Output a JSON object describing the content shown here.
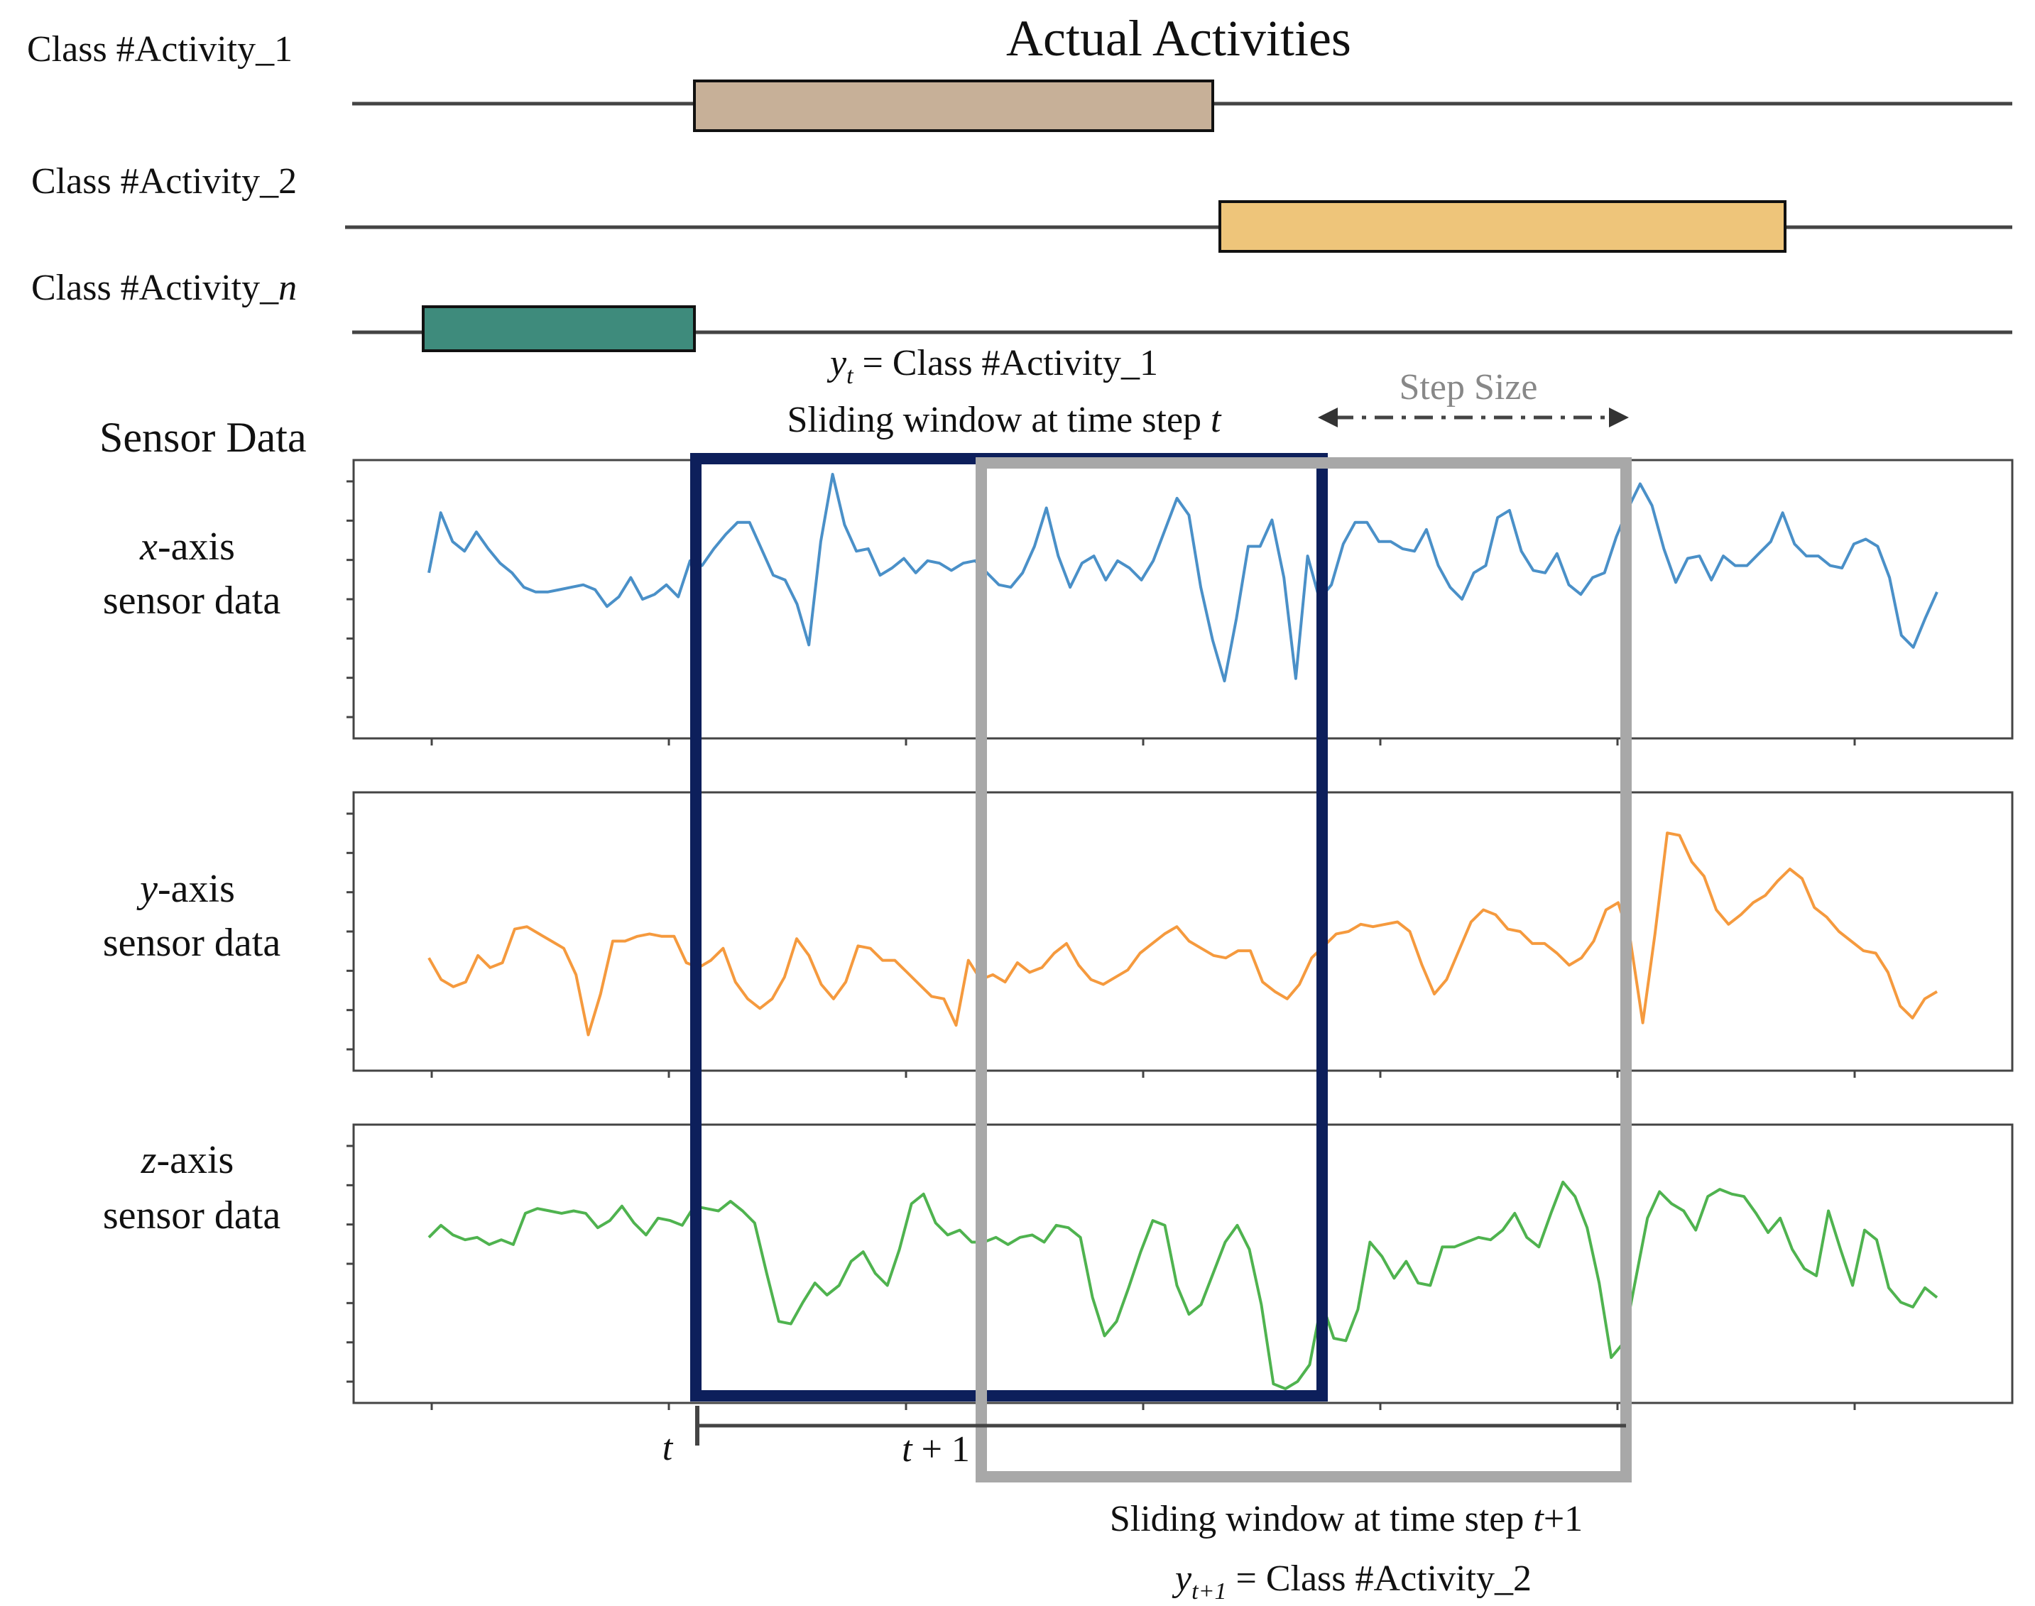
{
  "title": "Actual Activities",
  "activities": [
    {
      "label": "Class #Activity_1",
      "color": "#c7b098"
    },
    {
      "label": "Class #Activity_2",
      "color": "#eec57a"
    },
    {
      "label_prefix": "Class #Activity_",
      "label_var": "n",
      "color": "#3e8b7c"
    }
  ],
  "sensor_title": "Sensor Data",
  "window_t": {
    "label_y_var": "y",
    "label_y_sub": "t",
    "label_y_rest": " = Class #Activity_1",
    "label_caption": "Sliding window at time step ",
    "label_caption_var": "t",
    "color": "#0d1f5b"
  },
  "window_t1": {
    "label_caption": "Sliding window at time step ",
    "label_caption_var": "t",
    "label_caption_rest": "+1",
    "label_y_var": "y",
    "label_y_sub": "t+1",
    "label_y_rest": " = Class #Activity_2",
    "color": "#a8a8a8"
  },
  "step_size": {
    "label": "Step Size",
    "color": "#888888"
  },
  "time_axis": {
    "t_label": "t",
    "t1_label_var": "t",
    "t1_label_rest": " + 1"
  },
  "axes_labels": [
    {
      "var": "x",
      "line1_rest": "-axis",
      "line2": "sensor data"
    },
    {
      "var": "y",
      "line1_rest": "-axis",
      "line2": "sensor data"
    },
    {
      "var": "z",
      "line1_rest": "-axis",
      "line2": "sensor data"
    }
  ],
  "chart_data": {
    "type": "line",
    "x_range": [
      0,
      127
    ],
    "series": [
      {
        "name": "x-axis sensor data",
        "color": "#4a90c8",
        "values": [
          6.5,
          9.0,
          7.8,
          7.4,
          8.2,
          7.5,
          6.9,
          6.5,
          5.9,
          5.7,
          5.7,
          5.8,
          5.9,
          6.0,
          5.8,
          5.1,
          5.5,
          6.3,
          5.4,
          5.6,
          6.0,
          5.5,
          7.0,
          6.8,
          7.5,
          8.1,
          8.6,
          8.6,
          7.5,
          6.4,
          6.2,
          5.2,
          3.5,
          7.8,
          10.6,
          8.5,
          7.4,
          7.5,
          6.4,
          6.7,
          7.1,
          6.5,
          7.0,
          6.9,
          6.6,
          6.9,
          7.0,
          6.5,
          6.0,
          5.9,
          6.5,
          7.6,
          9.2,
          7.2,
          5.9,
          6.9,
          7.2,
          6.2,
          7.0,
          6.7,
          6.2,
          7.0,
          8.3,
          9.6,
          8.9,
          5.9,
          3.7,
          2.0,
          4.6,
          7.6,
          7.6,
          8.7,
          6.3,
          2.1,
          7.2,
          5.4,
          6.0,
          7.7,
          8.6,
          8.6,
          7.8,
          7.8,
          7.5,
          7.4,
          8.3,
          6.8,
          5.9,
          5.4,
          6.5,
          6.8,
          8.8,
          9.1,
          7.4,
          6.6,
          6.5,
          7.3,
          6.0,
          5.6,
          6.3,
          6.5,
          8.0,
          9.2,
          10.2,
          9.3,
          7.5,
          6.1,
          7.1,
          7.2,
          6.2,
          7.2,
          6.8,
          6.8,
          7.3,
          7.8,
          9.0,
          7.7,
          7.2,
          7.2,
          6.8,
          6.7,
          7.7,
          7.9,
          7.6,
          6.3,
          3.9,
          3.4,
          4.6,
          5.7
        ]
      },
      {
        "name": "y-axis sensor data",
        "color": "#f59a3e",
        "values": [
          4.3,
          3.4,
          3.1,
          3.3,
          4.4,
          3.9,
          4.1,
          5.5,
          5.6,
          5.3,
          5.0,
          4.7,
          3.6,
          1.1,
          2.8,
          5.0,
          5.0,
          5.2,
          5.3,
          5.2,
          5.2,
          4.1,
          3.9,
          4.2,
          4.7,
          3.3,
          2.6,
          2.2,
          2.6,
          3.5,
          5.1,
          4.4,
          3.2,
          2.6,
          3.3,
          4.8,
          4.7,
          4.2,
          4.2,
          3.7,
          3.2,
          2.7,
          2.6,
          1.5,
          4.2,
          3.4,
          3.6,
          3.3,
          4.1,
          3.7,
          3.9,
          4.5,
          4.9,
          4.0,
          3.4,
          3.2,
          3.5,
          3.8,
          4.5,
          4.9,
          5.3,
          5.6,
          5.0,
          4.7,
          4.4,
          4.3,
          4.6,
          4.6,
          3.3,
          2.9,
          2.6,
          3.2,
          4.3,
          4.8,
          5.3,
          5.4,
          5.7,
          5.6,
          5.7,
          5.8,
          5.4,
          4.0,
          2.8,
          3.4,
          4.6,
          5.8,
          6.3,
          6.1,
          5.5,
          5.4,
          4.9,
          4.9,
          4.5,
          4.0,
          4.3,
          5.0,
          6.3,
          6.6,
          5.0,
          1.6,
          5.3,
          9.5,
          9.4,
          8.3,
          7.7,
          6.3,
          5.7,
          6.1,
          6.6,
          6.9,
          7.5,
          8.0,
          7.6,
          6.4,
          6.0,
          5.4,
          5.0,
          4.6,
          4.5,
          3.7,
          2.3,
          1.8,
          2.6,
          2.9
        ]
      },
      {
        "name": "z-axis sensor data",
        "color": "#4fb34f",
        "values": [
          6.5,
          7.0,
          6.6,
          6.4,
          6.5,
          6.2,
          6.4,
          6.2,
          7.5,
          7.7,
          7.6,
          7.5,
          7.6,
          7.5,
          6.9,
          7.2,
          7.8,
          7.1,
          6.6,
          7.3,
          7.2,
          7.0,
          7.8,
          7.7,
          7.6,
          8.0,
          7.6,
          7.1,
          5.0,
          3.0,
          2.9,
          3.8,
          4.6,
          4.1,
          4.5,
          5.5,
          5.9,
          5.0,
          4.5,
          6.0,
          7.9,
          8.3,
          7.1,
          6.6,
          6.8,
          6.3,
          6.3,
          6.5,
          6.2,
          6.5,
          6.6,
          6.3,
          7.0,
          6.9,
          6.5,
          4.0,
          2.4,
          3.0,
          4.4,
          5.9,
          7.2,
          7.0,
          4.5,
          3.3,
          3.7,
          5.0,
          6.3,
          7.0,
          6.0,
          3.7,
          0.4,
          0.2,
          0.5,
          1.2,
          3.8,
          2.3,
          2.2,
          3.5,
          6.3,
          5.7,
          4.8,
          5.5,
          4.6,
          4.5,
          6.1,
          6.1,
          6.3,
          6.5,
          6.4,
          6.8,
          7.5,
          6.5,
          6.1,
          7.5,
          8.8,
          8.2,
          6.9,
          4.6,
          1.5,
          2.1,
          4.7,
          7.3,
          8.4,
          7.9,
          7.6,
          6.8,
          8.2,
          8.5,
          8.3,
          8.2,
          7.5,
          6.7,
          7.3,
          6.0,
          5.2,
          4.9,
          7.6,
          6.0,
          4.5,
          6.8,
          6.4,
          4.4,
          3.8,
          3.6,
          4.4,
          4.0
        ]
      }
    ]
  }
}
